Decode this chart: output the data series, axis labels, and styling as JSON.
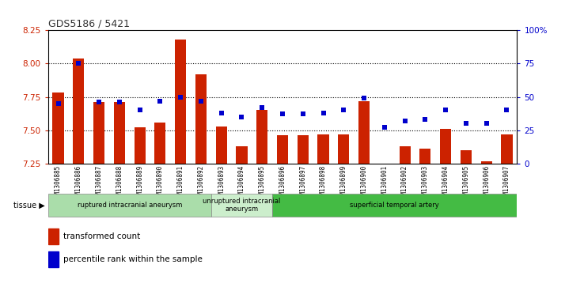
{
  "title": "GDS5186 / 5421",
  "samples": [
    "GSM1306885",
    "GSM1306886",
    "GSM1306887",
    "GSM1306888",
    "GSM1306889",
    "GSM1306890",
    "GSM1306891",
    "GSM1306892",
    "GSM1306893",
    "GSM1306894",
    "GSM1306895",
    "GSM1306896",
    "GSM1306897",
    "GSM1306898",
    "GSM1306899",
    "GSM1306900",
    "GSM1306901",
    "GSM1306902",
    "GSM1306903",
    "GSM1306904",
    "GSM1306905",
    "GSM1306906",
    "GSM1306907"
  ],
  "transformed_count": [
    7.78,
    8.04,
    7.71,
    7.71,
    7.52,
    7.56,
    8.18,
    7.92,
    7.53,
    7.38,
    7.65,
    7.46,
    7.46,
    7.47,
    7.47,
    7.72,
    7.25,
    7.38,
    7.36,
    7.51,
    7.35,
    7.27,
    7.47
  ],
  "percentile_rank": [
    45,
    75,
    46,
    46,
    40,
    47,
    50,
    47,
    38,
    35,
    42,
    37,
    37,
    38,
    40,
    49,
    27,
    32,
    33,
    40,
    30,
    30,
    40
  ],
  "groups": [
    {
      "label": "ruptured intracranial aneurysm",
      "start": 0,
      "end": 8,
      "color": "#aaddaa"
    },
    {
      "label": "unruptured intracranial\naneurysm",
      "start": 8,
      "end": 11,
      "color": "#cceecc"
    },
    {
      "label": "superficial temporal artery",
      "start": 11,
      "end": 23,
      "color": "#44bb44"
    }
  ],
  "ylim_left": [
    7.25,
    8.25
  ],
  "ylim_right": [
    0,
    100
  ],
  "yticks_left": [
    7.25,
    7.5,
    7.75,
    8.0,
    8.25
  ],
  "yticks_right": [
    0,
    25,
    50,
    75,
    100
  ],
  "bar_color": "#cc2200",
  "dot_color": "#0000cc",
  "bar_width": 0.55,
  "plot_bg": "#ffffff",
  "tick_area_bg": "#d8d8d8",
  "ylabel_left_color": "#cc2200",
  "ylabel_right_color": "#0000cc",
  "grid_yticks": [
    7.5,
    7.75,
    8.0
  ]
}
